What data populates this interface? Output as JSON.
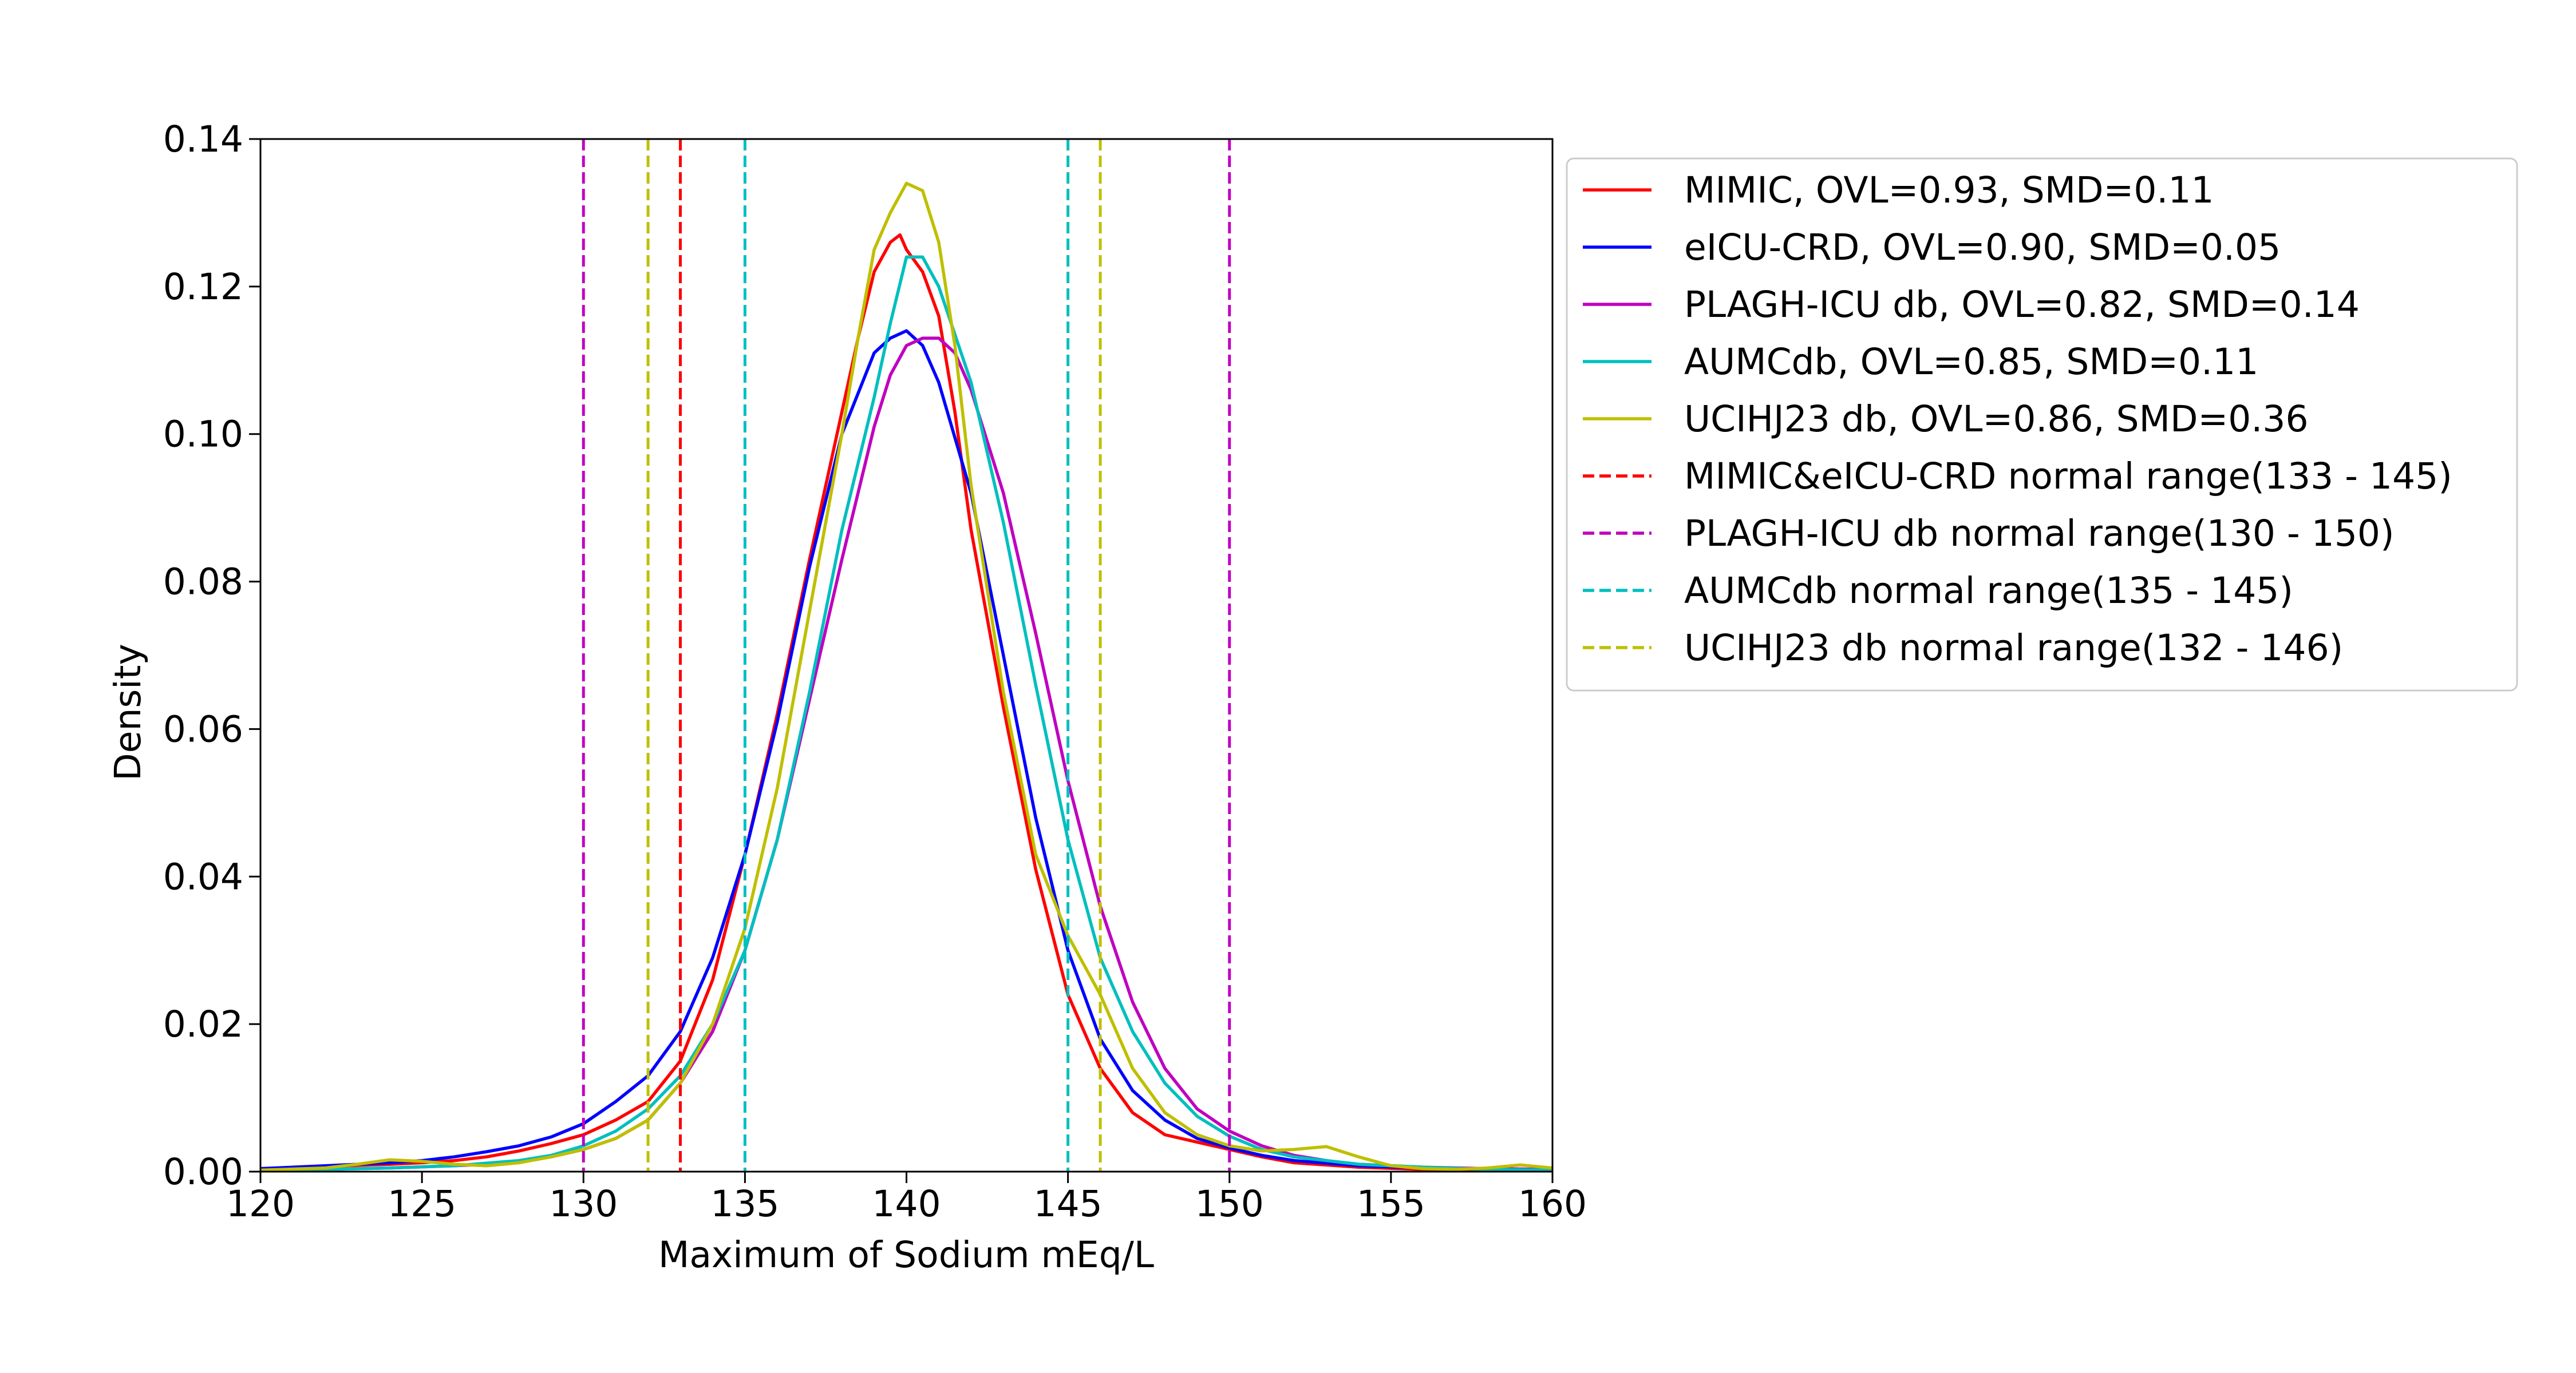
{
  "chart_data": {
    "type": "line",
    "title": "",
    "xlabel": "Maximum of Sodium mEq/L",
    "ylabel": "Density",
    "xlim": [
      120,
      160
    ],
    "ylim": [
      0,
      0.14
    ],
    "xticks": [
      120,
      125,
      130,
      135,
      140,
      145,
      150,
      155,
      160
    ],
    "yticks": [
      0.0,
      0.02,
      0.04,
      0.06,
      0.08,
      0.1,
      0.12,
      0.14
    ],
    "grid": false,
    "legend_position": "outside-right",
    "series": [
      {
        "name": "MIMIC, OVL=0.93, SMD=0.11",
        "color": "#ff0000",
        "style": "solid",
        "points": [
          [
            120,
            0.0004
          ],
          [
            122,
            0.0007
          ],
          [
            124,
            0.001
          ],
          [
            125,
            0.0012
          ],
          [
            126,
            0.0015
          ],
          [
            127,
            0.002
          ],
          [
            128,
            0.0028
          ],
          [
            129,
            0.0038
          ],
          [
            130,
            0.005
          ],
          [
            131,
            0.007
          ],
          [
            132,
            0.0095
          ],
          [
            133,
            0.015
          ],
          [
            134,
            0.026
          ],
          [
            135,
            0.043
          ],
          [
            136,
            0.062
          ],
          [
            137,
            0.083
          ],
          [
            138,
            0.103
          ],
          [
            138.5,
            0.113
          ],
          [
            139,
            0.122
          ],
          [
            139.5,
            0.126
          ],
          [
            139.8,
            0.127
          ],
          [
            140,
            0.125
          ],
          [
            140.5,
            0.122
          ],
          [
            141,
            0.116
          ],
          [
            141.5,
            0.103
          ],
          [
            142,
            0.087
          ],
          [
            143,
            0.063
          ],
          [
            144,
            0.041
          ],
          [
            145,
            0.024
          ],
          [
            146,
            0.014
          ],
          [
            147,
            0.008
          ],
          [
            148,
            0.005
          ],
          [
            149,
            0.004
          ],
          [
            150,
            0.003
          ],
          [
            151,
            0.002
          ],
          [
            152,
            0.0012
          ],
          [
            154,
            0.0006
          ],
          [
            156,
            0.0003
          ],
          [
            158,
            0.0002
          ],
          [
            160,
            0.0001
          ]
        ]
      },
      {
        "name": "eICU-CRD, OVL=0.90, SMD=0.05",
        "color": "#0000ff",
        "style": "solid",
        "points": [
          [
            120,
            0.0004
          ],
          [
            121,
            0.0006
          ],
          [
            122,
            0.0008
          ],
          [
            123,
            0.001
          ],
          [
            124,
            0.0012
          ],
          [
            125,
            0.0015
          ],
          [
            126,
            0.002
          ],
          [
            127,
            0.0027
          ],
          [
            128,
            0.0035
          ],
          [
            129,
            0.0047
          ],
          [
            130,
            0.0065
          ],
          [
            131,
            0.0095
          ],
          [
            132,
            0.013
          ],
          [
            133,
            0.019
          ],
          [
            134,
            0.029
          ],
          [
            135,
            0.043
          ],
          [
            136,
            0.061
          ],
          [
            137,
            0.082
          ],
          [
            138,
            0.1
          ],
          [
            139,
            0.111
          ],
          [
            139.5,
            0.113
          ],
          [
            140,
            0.114
          ],
          [
            140.5,
            0.112
          ],
          [
            141,
            0.107
          ],
          [
            142,
            0.092
          ],
          [
            143,
            0.07
          ],
          [
            144,
            0.048
          ],
          [
            145,
            0.03
          ],
          [
            146,
            0.018
          ],
          [
            147,
            0.011
          ],
          [
            148,
            0.007
          ],
          [
            149,
            0.0045
          ],
          [
            150,
            0.0032
          ],
          [
            151,
            0.0022
          ],
          [
            152,
            0.0015
          ],
          [
            154,
            0.0008
          ],
          [
            156,
            0.0005
          ],
          [
            158,
            0.0003
          ],
          [
            160,
            0.0002
          ]
        ]
      },
      {
        "name": "PLAGH-ICU db, OVL=0.82, SMD=0.14",
        "color": "#bf00bf",
        "style": "solid",
        "points": [
          [
            120,
            0.0002
          ],
          [
            122,
            0.0003
          ],
          [
            124,
            0.0005
          ],
          [
            126,
            0.0008
          ],
          [
            127,
            0.001
          ],
          [
            128,
            0.0014
          ],
          [
            129,
            0.002
          ],
          [
            130,
            0.003
          ],
          [
            131,
            0.0045
          ],
          [
            132,
            0.007
          ],
          [
            133,
            0.012
          ],
          [
            134,
            0.019
          ],
          [
            135,
            0.03
          ],
          [
            136,
            0.045
          ],
          [
            137,
            0.064
          ],
          [
            138,
            0.083
          ],
          [
            139,
            0.101
          ],
          [
            139.5,
            0.108
          ],
          [
            140,
            0.112
          ],
          [
            140.5,
            0.113
          ],
          [
            141,
            0.113
          ],
          [
            141.5,
            0.111
          ],
          [
            142,
            0.106
          ],
          [
            143,
            0.092
          ],
          [
            144,
            0.073
          ],
          [
            145,
            0.053
          ],
          [
            146,
            0.036
          ],
          [
            147,
            0.023
          ],
          [
            148,
            0.014
          ],
          [
            149,
            0.0085
          ],
          [
            150,
            0.0055
          ],
          [
            151,
            0.0035
          ],
          [
            152,
            0.0022
          ],
          [
            153,
            0.0015
          ],
          [
            154,
            0.001
          ],
          [
            156,
            0.0006
          ],
          [
            158,
            0.0004
          ],
          [
            160,
            0.0003
          ]
        ]
      },
      {
        "name": "AUMCdb, OVL=0.85, SMD=0.11",
        "color": "#00bfbf",
        "style": "solid",
        "points": [
          [
            120,
            0.0002
          ],
          [
            122,
            0.0003
          ],
          [
            124,
            0.0005
          ],
          [
            126,
            0.0008
          ],
          [
            128,
            0.0015
          ],
          [
            129,
            0.0022
          ],
          [
            130,
            0.0035
          ],
          [
            131,
            0.0055
          ],
          [
            132,
            0.0085
          ],
          [
            133,
            0.013
          ],
          [
            134,
            0.02
          ],
          [
            135,
            0.03
          ],
          [
            136,
            0.045
          ],
          [
            137,
            0.065
          ],
          [
            138,
            0.087
          ],
          [
            139,
            0.105
          ],
          [
            139.5,
            0.115
          ],
          [
            140,
            0.124
          ],
          [
            140.5,
            0.124
          ],
          [
            141,
            0.12
          ],
          [
            142,
            0.107
          ],
          [
            143,
            0.088
          ],
          [
            144,
            0.066
          ],
          [
            145,
            0.045
          ],
          [
            146,
            0.029
          ],
          [
            147,
            0.019
          ],
          [
            148,
            0.012
          ],
          [
            149,
            0.0075
          ],
          [
            150,
            0.0048
          ],
          [
            151,
            0.003
          ],
          [
            152,
            0.002
          ],
          [
            154,
            0.001
          ],
          [
            156,
            0.0006
          ],
          [
            158,
            0.0003
          ],
          [
            160,
            0.0002
          ]
        ]
      },
      {
        "name": "UCIHJ23 db, OVL=0.86, SMD=0.36",
        "color": "#bfbf00",
        "style": "solid",
        "points": [
          [
            120,
            0.0002
          ],
          [
            122,
            0.0005
          ],
          [
            123,
            0.001
          ],
          [
            124,
            0.0016
          ],
          [
            125,
            0.0014
          ],
          [
            126,
            0.001
          ],
          [
            127,
            0.0008
          ],
          [
            128,
            0.0012
          ],
          [
            129,
            0.002
          ],
          [
            130,
            0.003
          ],
          [
            131,
            0.0045
          ],
          [
            132,
            0.007
          ],
          [
            133,
            0.012
          ],
          [
            134,
            0.02
          ],
          [
            135,
            0.033
          ],
          [
            136,
            0.052
          ],
          [
            137,
            0.076
          ],
          [
            138,
            0.1
          ],
          [
            138.5,
            0.113
          ],
          [
            139,
            0.125
          ],
          [
            139.5,
            0.13
          ],
          [
            140,
            0.134
          ],
          [
            140.5,
            0.133
          ],
          [
            141,
            0.126
          ],
          [
            141.5,
            0.112
          ],
          [
            142,
            0.093
          ],
          [
            143,
            0.065
          ],
          [
            144,
            0.043
          ],
          [
            145,
            0.032
          ],
          [
            146,
            0.024
          ],
          [
            147,
            0.014
          ],
          [
            148,
            0.008
          ],
          [
            149,
            0.005
          ],
          [
            150,
            0.0035
          ],
          [
            151,
            0.0028
          ],
          [
            152,
            0.003
          ],
          [
            153,
            0.0034
          ],
          [
            154,
            0.002
          ],
          [
            155,
            0.0008
          ],
          [
            156,
            0.0004
          ],
          [
            157,
            0.0003
          ],
          [
            158,
            0.0005
          ],
          [
            159,
            0.0009
          ],
          [
            160,
            0.0005
          ]
        ]
      }
    ],
    "reference_lines": [
      {
        "name": "MIMIC&eICU-CRD normal range(133 - 145)",
        "color": "#ff0000",
        "x": [
          133
        ]
      },
      {
        "name": "PLAGH-ICU db normal range(130 - 150)",
        "color": "#bf00bf",
        "x": [
          130,
          150
        ]
      },
      {
        "name": "AUMCdb normal range(135 - 145)",
        "color": "#00bfbf",
        "x": [
          135,
          145
        ]
      },
      {
        "name": "UCIHJ23 db normal range(132 - 146)",
        "color": "#bfbf00",
        "x": [
          132,
          146
        ]
      }
    ]
  }
}
